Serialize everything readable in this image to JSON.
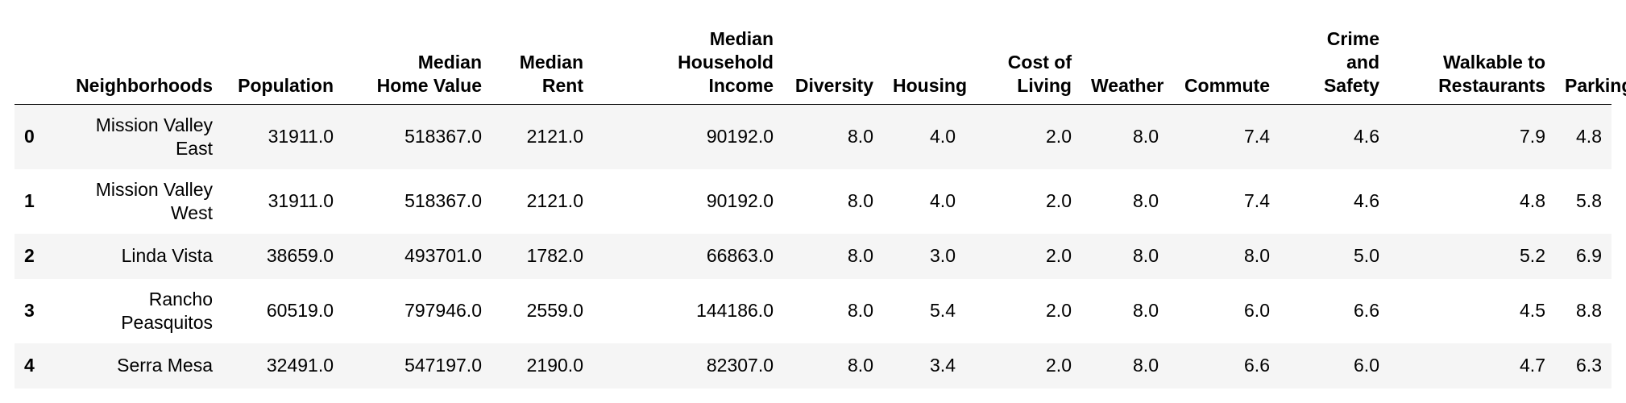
{
  "table": {
    "columns": [
      "Neighborhoods",
      "Population",
      "Median\nHome Value",
      "Median\nRent",
      "Median\nHousehold\nIncome",
      "Diversity",
      "Housing",
      "Cost of\nLiving",
      "Weather",
      "Commute",
      "Crime\nand\nSafety",
      "Walkable to\nRestaurants",
      "Parking"
    ],
    "rows": [
      {
        "index": "0",
        "cells": [
          "Mission Valley\nEast",
          "31911.0",
          "518367.0",
          "2121.0",
          "90192.0",
          "8.0",
          "4.0",
          "2.0",
          "8.0",
          "7.4",
          "4.6",
          "7.9",
          "4.8"
        ]
      },
      {
        "index": "1",
        "cells": [
          "Mission Valley\nWest",
          "31911.0",
          "518367.0",
          "2121.0",
          "90192.0",
          "8.0",
          "4.0",
          "2.0",
          "8.0",
          "7.4",
          "4.6",
          "4.8",
          "5.8"
        ]
      },
      {
        "index": "2",
        "cells": [
          "Linda Vista",
          "38659.0",
          "493701.0",
          "1782.0",
          "66863.0",
          "8.0",
          "3.0",
          "2.0",
          "8.0",
          "8.0",
          "5.0",
          "5.2",
          "6.9"
        ]
      },
      {
        "index": "3",
        "cells": [
          "Rancho\nPeasquitos",
          "60519.0",
          "797946.0",
          "2559.0",
          "144186.0",
          "8.0",
          "5.4",
          "2.0",
          "8.0",
          "6.0",
          "6.6",
          "4.5",
          "8.8"
        ]
      },
      {
        "index": "4",
        "cells": [
          "Serra Mesa",
          "32491.0",
          "547197.0",
          "2190.0",
          "82307.0",
          "8.0",
          "3.4",
          "2.0",
          "8.0",
          "6.6",
          "6.0",
          "4.7",
          "6.3"
        ]
      }
    ]
  }
}
